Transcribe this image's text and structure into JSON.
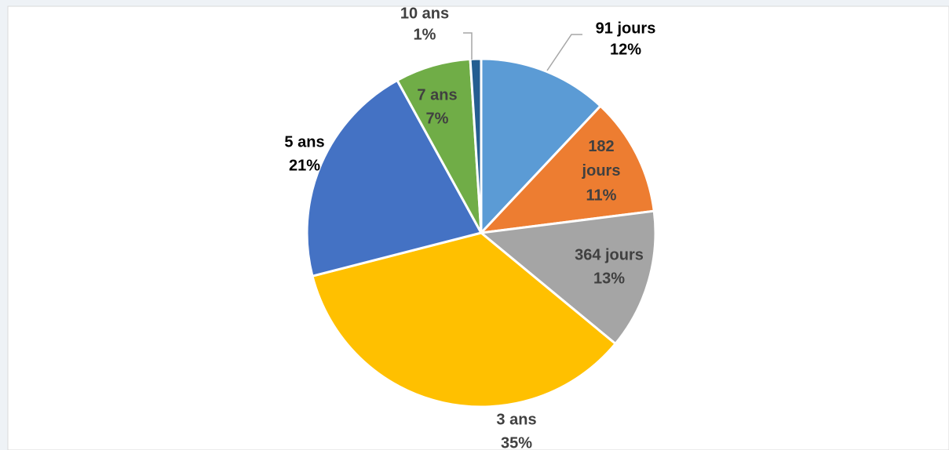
{
  "chart_data": {
    "type": "pie",
    "categories": [
      "91 jours",
      "182 jours",
      "364 jours",
      "3 ans",
      "5 ans",
      "7 ans",
      "10 ans"
    ],
    "values": [
      12,
      11,
      13,
      35,
      21,
      7,
      1
    ],
    "value_labels": [
      "12%",
      "11%",
      "13%",
      "35%",
      "21%",
      "7%",
      "1%"
    ],
    "colors": [
      "#5b9bd5",
      "#ed7d31",
      "#a5a5a5",
      "#ffc000",
      "#4472c4",
      "#70ad47",
      "#255e91"
    ]
  }
}
